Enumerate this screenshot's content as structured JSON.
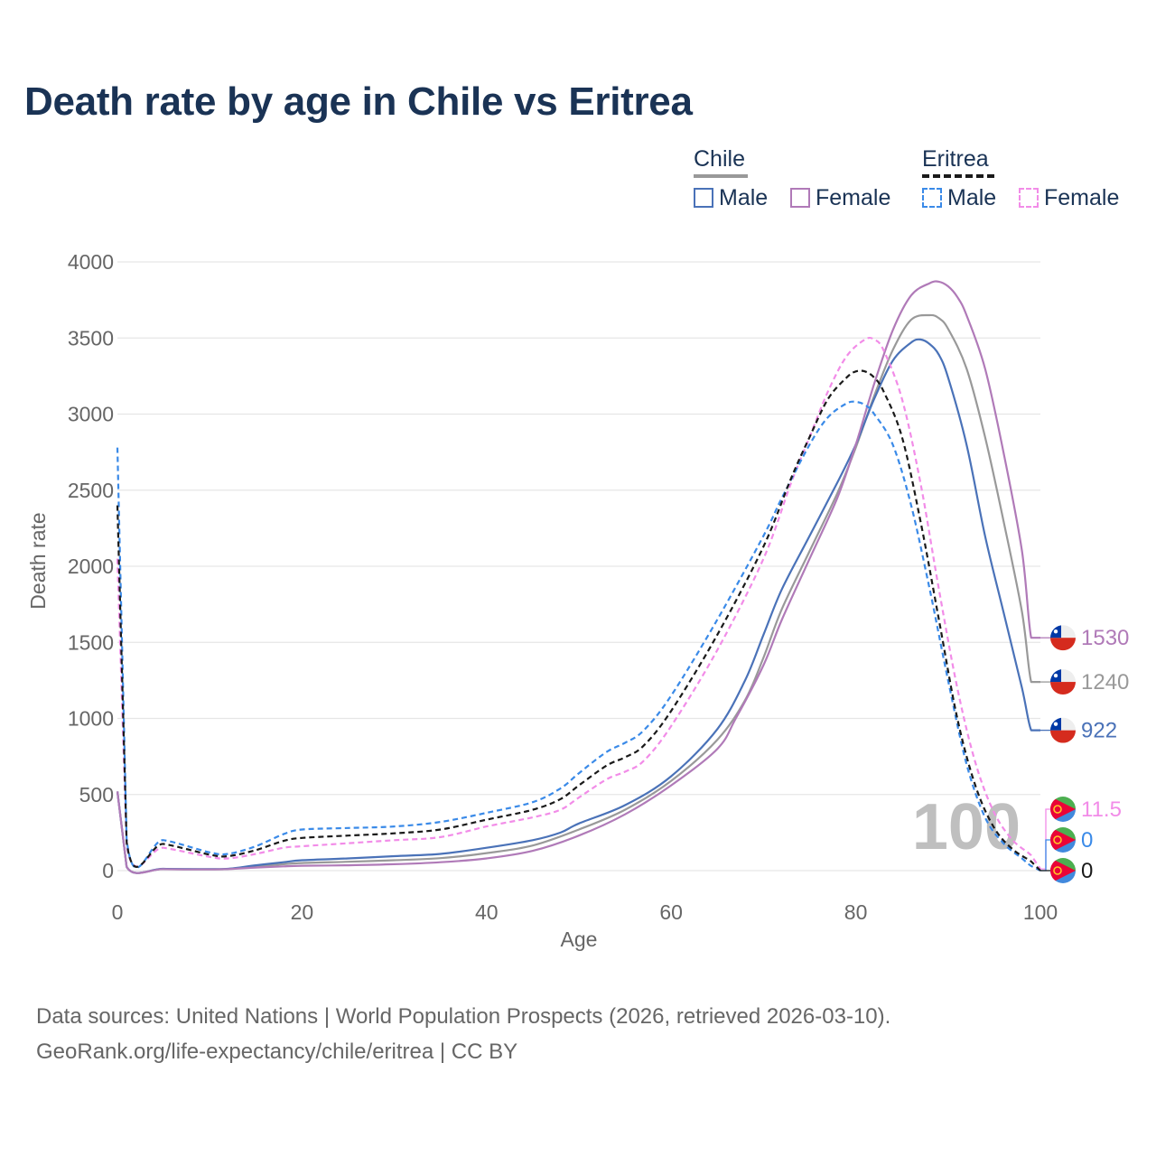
{
  "title": "Death rate by age in Chile vs Eritrea",
  "legend": {
    "chile": {
      "label": "Chile",
      "male": "Male",
      "female": "Female"
    },
    "eritrea": {
      "label": "Eritrea",
      "male": "Male",
      "female": "Female"
    }
  },
  "colors": {
    "chile_male": "#4a72b8",
    "chile_female": "#b07ab8",
    "chile_total": "#999999",
    "eritrea_male": "#3a8ae8",
    "eritrea_female": "#f28ce8",
    "eritrea_total": "#1a1a1a",
    "title": "#1a3355"
  },
  "watermark": "100",
  "sources": {
    "line1": "Data sources: United Nations | World Population Prospects (2026, retrieved 2026-03-10).",
    "line2": "GeoRank.org/life-expectancy/chile/eritrea | CC BY"
  },
  "chart_data": {
    "type": "line",
    "title": "Death rate by age in Chile vs Eritrea",
    "xlabel": "Age",
    "ylabel": "Death rate",
    "xlim": [
      0,
      100
    ],
    "ylim": [
      0,
      4000
    ],
    "x_ticks": [
      0,
      20,
      40,
      60,
      80,
      100
    ],
    "y_ticks": [
      0,
      500,
      1000,
      1500,
      2000,
      2500,
      3000,
      3500,
      4000
    ],
    "grid": true,
    "legend_position": "top-right",
    "series": [
      {
        "name": "Chile Male",
        "country": "Chile",
        "sex": "Male",
        "key": "chile_male",
        "dashed": false,
        "end_label": "922",
        "points": [
          [
            0,
            520
          ],
          [
            1,
            25
          ],
          [
            5,
            12
          ],
          [
            10,
            10
          ],
          [
            12,
            12
          ],
          [
            15,
            35
          ],
          [
            18,
            55
          ],
          [
            20,
            68
          ],
          [
            25,
            80
          ],
          [
            30,
            95
          ],
          [
            35,
            110
          ],
          [
            40,
            150
          ],
          [
            45,
            200
          ],
          [
            48,
            250
          ],
          [
            50,
            310
          ],
          [
            55,
            430
          ],
          [
            60,
            620
          ],
          [
            65,
            930
          ],
          [
            68,
            1250
          ],
          [
            70,
            1550
          ],
          [
            72,
            1850
          ],
          [
            75,
            2200
          ],
          [
            78,
            2550
          ],
          [
            80,
            2800
          ],
          [
            82,
            3100
          ],
          [
            84,
            3350
          ],
          [
            86,
            3470
          ],
          [
            87,
            3490
          ],
          [
            88,
            3460
          ],
          [
            89,
            3390
          ],
          [
            90,
            3240
          ],
          [
            92,
            2800
          ],
          [
            94,
            2200
          ],
          [
            96,
            1700
          ],
          [
            98,
            1200
          ],
          [
            99,
            922
          ],
          [
            100,
            922
          ]
        ]
      },
      {
        "name": "Chile Female",
        "country": "Chile",
        "sex": "Female",
        "key": "chile_female",
        "dashed": false,
        "end_label": "1530",
        "points": [
          [
            0,
            520
          ],
          [
            1,
            25
          ],
          [
            5,
            10
          ],
          [
            10,
            8
          ],
          [
            12,
            10
          ],
          [
            15,
            20
          ],
          [
            18,
            28
          ],
          [
            20,
            32
          ],
          [
            25,
            35
          ],
          [
            30,
            42
          ],
          [
            35,
            55
          ],
          [
            40,
            80
          ],
          [
            45,
            130
          ],
          [
            50,
            230
          ],
          [
            55,
            370
          ],
          [
            60,
            560
          ],
          [
            65,
            800
          ],
          [
            67,
            1000
          ],
          [
            70,
            1350
          ],
          [
            72,
            1650
          ],
          [
            75,
            2050
          ],
          [
            78,
            2450
          ],
          [
            80,
            2800
          ],
          [
            82,
            3200
          ],
          [
            84,
            3550
          ],
          [
            86,
            3780
          ],
          [
            88,
            3860
          ],
          [
            89,
            3870
          ],
          [
            90,
            3840
          ],
          [
            91,
            3770
          ],
          [
            92,
            3650
          ],
          [
            94,
            3300
          ],
          [
            96,
            2750
          ],
          [
            98,
            2100
          ],
          [
            99,
            1530
          ],
          [
            100,
            1530
          ]
        ]
      },
      {
        "name": "Chile Total",
        "country": "Chile",
        "sex": "Total",
        "key": "chile_total",
        "dashed": false,
        "end_label": "1240",
        "points": [
          [
            0,
            520
          ],
          [
            1,
            25
          ],
          [
            5,
            11
          ],
          [
            10,
            9
          ],
          [
            12,
            11
          ],
          [
            15,
            27
          ],
          [
            18,
            42
          ],
          [
            20,
            50
          ],
          [
            25,
            58
          ],
          [
            30,
            68
          ],
          [
            35,
            82
          ],
          [
            40,
            115
          ],
          [
            45,
            165
          ],
          [
            50,
            270
          ],
          [
            55,
            400
          ],
          [
            60,
            590
          ],
          [
            65,
            860
          ],
          [
            68,
            1120
          ],
          [
            70,
            1400
          ],
          [
            72,
            1720
          ],
          [
            75,
            2100
          ],
          [
            78,
            2480
          ],
          [
            80,
            2780
          ],
          [
            82,
            3120
          ],
          [
            84,
            3420
          ],
          [
            86,
            3620
          ],
          [
            88,
            3650
          ],
          [
            89,
            3630
          ],
          [
            90,
            3560
          ],
          [
            92,
            3300
          ],
          [
            94,
            2850
          ],
          [
            96,
            2300
          ],
          [
            98,
            1700
          ],
          [
            99,
            1240
          ],
          [
            100,
            1240
          ]
        ]
      },
      {
        "name": "Eritrea Male",
        "country": "Eritrea",
        "sex": "Male",
        "key": "eritrea_male",
        "dashed": true,
        "end_label": "0",
        "points": [
          [
            0,
            2780
          ],
          [
            1,
            210
          ],
          [
            5,
            200
          ],
          [
            10,
            120
          ],
          [
            12,
            110
          ],
          [
            15,
            160
          ],
          [
            18,
            240
          ],
          [
            20,
            270
          ],
          [
            25,
            280
          ],
          [
            30,
            290
          ],
          [
            35,
            320
          ],
          [
            40,
            380
          ],
          [
            45,
            450
          ],
          [
            48,
            540
          ],
          [
            50,
            640
          ],
          [
            53,
            780
          ],
          [
            55,
            840
          ],
          [
            57,
            920
          ],
          [
            60,
            1150
          ],
          [
            65,
            1650
          ],
          [
            70,
            2200
          ],
          [
            72,
            2450
          ],
          [
            75,
            2800
          ],
          [
            77,
            2980
          ],
          [
            79,
            3070
          ],
          [
            80,
            3080
          ],
          [
            81,
            3060
          ],
          [
            82,
            3000
          ],
          [
            84,
            2800
          ],
          [
            86,
            2400
          ],
          [
            88,
            1850
          ],
          [
            90,
            1250
          ],
          [
            92,
            700
          ],
          [
            94,
            350
          ],
          [
            96,
            180
          ],
          [
            98,
            80
          ],
          [
            99,
            30
          ],
          [
            100,
            0
          ]
        ]
      },
      {
        "name": "Eritrea Female",
        "country": "Eritrea",
        "sex": "Female",
        "key": "eritrea_female",
        "dashed": true,
        "end_label": "11.5",
        "points": [
          [
            0,
            2050
          ],
          [
            1,
            170
          ],
          [
            5,
            150
          ],
          [
            10,
            90
          ],
          [
            12,
            80
          ],
          [
            15,
            110
          ],
          [
            18,
            150
          ],
          [
            20,
            160
          ],
          [
            25,
            180
          ],
          [
            30,
            200
          ],
          [
            35,
            220
          ],
          [
            40,
            290
          ],
          [
            45,
            350
          ],
          [
            48,
            400
          ],
          [
            50,
            480
          ],
          [
            53,
            600
          ],
          [
            55,
            650
          ],
          [
            57,
            720
          ],
          [
            60,
            950
          ],
          [
            65,
            1450
          ],
          [
            70,
            2050
          ],
          [
            73,
            2550
          ],
          [
            75,
            2850
          ],
          [
            77,
            3150
          ],
          [
            79,
            3380
          ],
          [
            81,
            3490
          ],
          [
            82,
            3490
          ],
          [
            83,
            3420
          ],
          [
            85,
            3100
          ],
          [
            87,
            2550
          ],
          [
            89,
            1850
          ],
          [
            91,
            1200
          ],
          [
            93,
            700
          ],
          [
            95,
            380
          ],
          [
            97,
            200
          ],
          [
            99,
            100
          ],
          [
            100,
            11.5
          ]
        ]
      },
      {
        "name": "Eritrea Total",
        "country": "Eritrea",
        "sex": "Total",
        "key": "eritrea_total",
        "dashed": true,
        "end_label": "0",
        "points": [
          [
            0,
            2400
          ],
          [
            1,
            190
          ],
          [
            5,
            175
          ],
          [
            10,
            105
          ],
          [
            12,
            95
          ],
          [
            15,
            135
          ],
          [
            18,
            195
          ],
          [
            20,
            215
          ],
          [
            25,
            230
          ],
          [
            30,
            245
          ],
          [
            35,
            270
          ],
          [
            40,
            335
          ],
          [
            45,
            400
          ],
          [
            48,
            470
          ],
          [
            50,
            560
          ],
          [
            53,
            690
          ],
          [
            55,
            745
          ],
          [
            57,
            820
          ],
          [
            60,
            1050
          ],
          [
            65,
            1550
          ],
          [
            70,
            2130
          ],
          [
            73,
            2580
          ],
          [
            75,
            2850
          ],
          [
            77,
            3100
          ],
          [
            79,
            3240
          ],
          [
            80,
            3280
          ],
          [
            81,
            3280
          ],
          [
            82,
            3240
          ],
          [
            83,
            3150
          ],
          [
            85,
            2850
          ],
          [
            87,
            2300
          ],
          [
            89,
            1650
          ],
          [
            91,
            1000
          ],
          [
            93,
            550
          ],
          [
            95,
            280
          ],
          [
            97,
            140
          ],
          [
            99,
            60
          ],
          [
            100,
            0
          ]
        ]
      }
    ]
  }
}
